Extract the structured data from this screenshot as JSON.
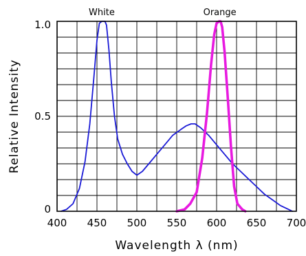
{
  "chart_data": {
    "type": "line",
    "xlabel": "Wavelength λ  (nm)",
    "ylabel": "Relative Intensity",
    "xlim": [
      400,
      700
    ],
    "ylim": [
      0,
      1.0
    ],
    "x_ticks": [
      400,
      450,
      500,
      550,
      600,
      650,
      700
    ],
    "y_ticks": [
      0,
      0.5,
      1.0
    ],
    "y_tick_labels": [
      "0",
      "0.5",
      "1.0"
    ],
    "grid": true,
    "series": [
      {
        "name": "White",
        "color": "#1a1ad6",
        "points": [
          [
            405,
            0.0
          ],
          [
            412,
            0.01
          ],
          [
            420,
            0.04
          ],
          [
            428,
            0.12
          ],
          [
            435,
            0.26
          ],
          [
            441,
            0.46
          ],
          [
            446,
            0.7
          ],
          [
            450,
            0.9
          ],
          [
            453,
            0.99
          ],
          [
            456,
            1.0
          ],
          [
            460,
            1.0
          ],
          [
            462,
            0.98
          ],
          [
            465,
            0.85
          ],
          [
            468,
            0.68
          ],
          [
            472,
            0.5
          ],
          [
            476,
            0.38
          ],
          [
            482,
            0.3
          ],
          [
            488,
            0.25
          ],
          [
            494,
            0.21
          ],
          [
            500,
            0.19
          ],
          [
            507,
            0.21
          ],
          [
            515,
            0.25
          ],
          [
            525,
            0.3
          ],
          [
            535,
            0.35
          ],
          [
            545,
            0.4
          ],
          [
            555,
            0.43
          ],
          [
            562,
            0.45
          ],
          [
            568,
            0.46
          ],
          [
            573,
            0.46
          ],
          [
            580,
            0.44
          ],
          [
            590,
            0.4
          ],
          [
            600,
            0.35
          ],
          [
            610,
            0.3
          ],
          [
            620,
            0.25
          ],
          [
            630,
            0.21
          ],
          [
            640,
            0.17
          ],
          [
            650,
            0.13
          ],
          [
            660,
            0.09
          ],
          [
            670,
            0.06
          ],
          [
            680,
            0.03
          ],
          [
            690,
            0.01
          ],
          [
            695,
            0.0
          ]
        ]
      },
      {
        "name": "Orange",
        "color": "#e81ae0",
        "points": [
          [
            550,
            0.0
          ],
          [
            560,
            0.01
          ],
          [
            567,
            0.04
          ],
          [
            575,
            0.1
          ],
          [
            582,
            0.28
          ],
          [
            588,
            0.52
          ],
          [
            593,
            0.77
          ],
          [
            597,
            0.93
          ],
          [
            600,
            0.99
          ],
          [
            603,
            1.0
          ],
          [
            605,
            1.0
          ],
          [
            607,
            0.97
          ],
          [
            610,
            0.84
          ],
          [
            614,
            0.6
          ],
          [
            618,
            0.34
          ],
          [
            622,
            0.13
          ],
          [
            626,
            0.04
          ],
          [
            632,
            0.01
          ],
          [
            636,
            0.0
          ]
        ]
      }
    ],
    "annotations": [
      {
        "text": "White",
        "x": 456,
        "y": 1.0
      },
      {
        "text": "Orange",
        "x": 604,
        "y": 1.0
      }
    ]
  }
}
